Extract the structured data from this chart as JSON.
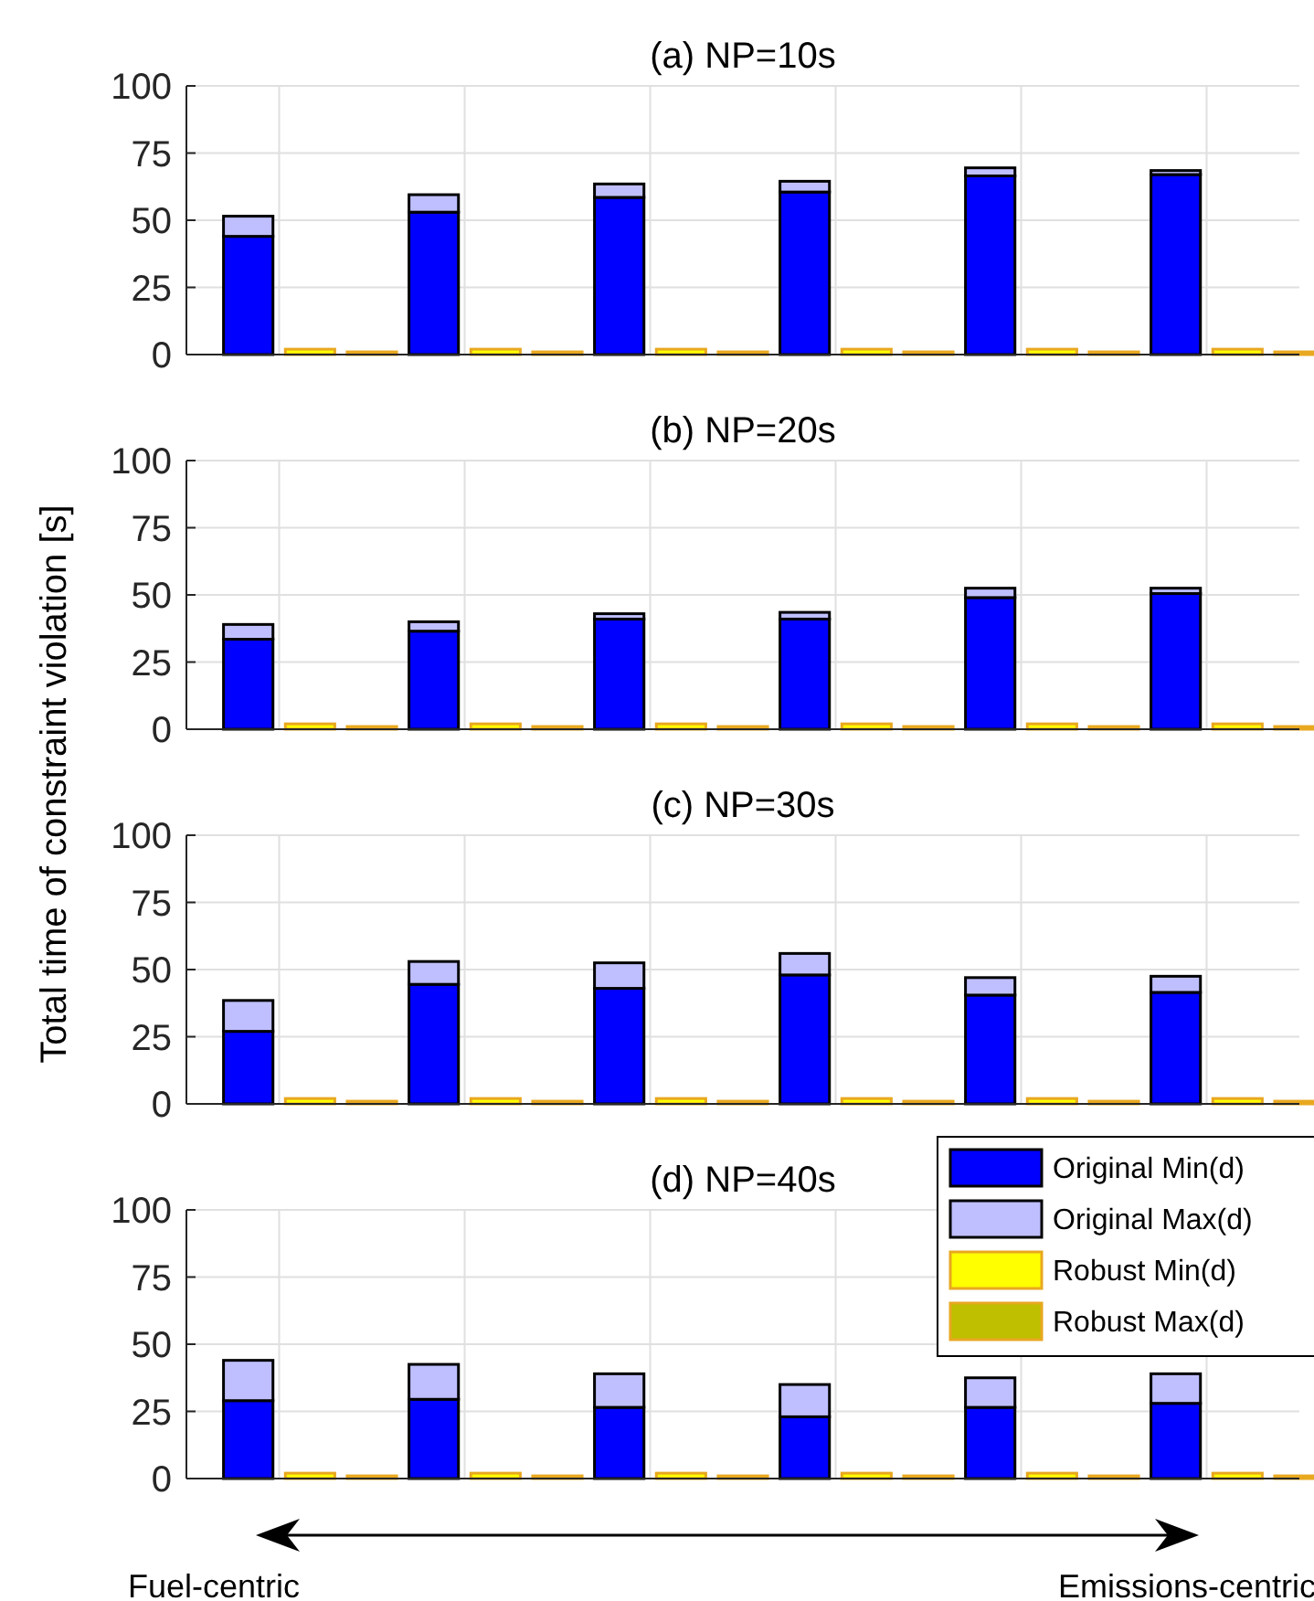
{
  "chart_data": [
    {
      "type": "bar",
      "title": "(a) NP=10s",
      "stacked": true,
      "categories": [
        null,
        null,
        null,
        null,
        null,
        null,
        null,
        null,
        null,
        null,
        null,
        null,
        null,
        null,
        null,
        null,
        null,
        null
      ],
      "ylim": [
        0,
        100
      ],
      "yticks": [
        0,
        25,
        50,
        75,
        100
      ],
      "grid": true,
      "tick_labels": "y",
      "series": [
        {
          "color": "#0000ff",
          "values": [
            44,
            null,
            null,
            53,
            null,
            null,
            58.5,
            null,
            null,
            60.5,
            null,
            null,
            66.5,
            null,
            null,
            67,
            null,
            null
          ]
        },
        {
          "color": "#bfbfff",
          "values": [
            7.5,
            null,
            null,
            6.5,
            null,
            null,
            5,
            null,
            null,
            4,
            null,
            null,
            3,
            null,
            null,
            1.5,
            null,
            null
          ]
        },
        {
          "color": "#ffff00",
          "values": [
            null,
            2,
            1,
            null,
            2,
            1,
            null,
            2,
            1,
            null,
            2,
            1,
            null,
            2,
            1,
            null,
            2,
            1
          ]
        },
        {
          "color": "#bfbf00",
          "values": [
            null,
            0,
            0,
            null,
            0,
            0,
            null,
            0,
            0,
            null,
            0,
            0,
            null,
            0,
            0,
            null,
            0,
            0
          ]
        }
      ]
    },
    {
      "type": "bar",
      "title": "(b) NP=20s",
      "stacked": true,
      "categories": [
        null,
        null,
        null,
        null,
        null,
        null,
        null,
        null,
        null,
        null,
        null,
        null,
        null,
        null,
        null,
        null,
        null,
        null
      ],
      "ylim": [
        0,
        100
      ],
      "yticks": [
        0,
        25,
        50,
        75,
        100
      ],
      "grid": true,
      "tick_labels": "y",
      "series": [
        {
          "color": "#0000ff",
          "values": [
            33.5,
            null,
            null,
            36.5,
            null,
            null,
            41,
            null,
            null,
            41,
            null,
            null,
            49,
            null,
            null,
            50.5,
            null,
            null
          ]
        },
        {
          "color": "#bfbfff",
          "values": [
            5.5,
            null,
            null,
            3.5,
            null,
            null,
            2,
            null,
            null,
            2.5,
            null,
            null,
            3.5,
            null,
            null,
            2,
            null,
            null
          ]
        },
        {
          "color": "#ffff00",
          "values": [
            null,
            2,
            1,
            null,
            2,
            1,
            null,
            2,
            1,
            null,
            2,
            1,
            null,
            2,
            1,
            null,
            2,
            1
          ]
        },
        {
          "color": "#bfbf00",
          "values": [
            null,
            0,
            0,
            null,
            0,
            0,
            null,
            0,
            0,
            null,
            0,
            0,
            null,
            0,
            0,
            null,
            0,
            0
          ]
        }
      ]
    },
    {
      "type": "bar",
      "title": "(c) NP=30s",
      "ylabel": "Total time of constraint violation [s]",
      "stacked": true,
      "categories": [
        null,
        null,
        null,
        null,
        null,
        null,
        null,
        null,
        null,
        null,
        null,
        null,
        null,
        null,
        null,
        null,
        null,
        null
      ],
      "ylim": [
        0,
        100
      ],
      "yticks": [
        0,
        25,
        50,
        75,
        100
      ],
      "grid": true,
      "tick_labels": "y",
      "series": [
        {
          "color": "#0000ff",
          "values": [
            27,
            null,
            null,
            44.5,
            null,
            null,
            43,
            null,
            null,
            48,
            null,
            null,
            40.5,
            null,
            null,
            41.5,
            null,
            null
          ]
        },
        {
          "color": "#bfbfff",
          "values": [
            11.5,
            null,
            null,
            8.5,
            null,
            null,
            9.5,
            null,
            null,
            8,
            null,
            null,
            6.5,
            null,
            null,
            6,
            null,
            null
          ]
        },
        {
          "color": "#ffff00",
          "values": [
            null,
            2,
            1,
            null,
            2,
            1,
            null,
            2,
            1,
            null,
            2,
            1,
            null,
            2,
            1,
            null,
            2,
            1
          ]
        },
        {
          "color": "#bfbf00",
          "values": [
            null,
            0,
            0,
            null,
            0,
            0,
            null,
            0,
            0,
            null,
            0,
            0,
            null,
            0,
            0,
            null,
            0,
            0
          ]
        }
      ]
    },
    {
      "type": "bar",
      "title": "(d) NP=40s",
      "stacked": true,
      "legend": "top right",
      "annotations": [
        "Fuel-centric",
        "Emissions-centric"
      ],
      "categories": [
        null,
        null,
        null,
        null,
        null,
        null,
        null,
        null,
        null,
        null,
        null,
        null,
        null,
        null,
        null,
        null,
        null,
        null
      ],
      "ylim": [
        0,
        100
      ],
      "yticks": [
        0,
        25,
        50,
        75,
        100
      ],
      "grid": true,
      "tick_labels": "y",
      "series": [
        {
          "name": "Original Min(d)",
          "color": "#0000ff",
          "values": [
            29,
            null,
            null,
            29.5,
            null,
            null,
            26.5,
            null,
            null,
            23,
            null,
            null,
            26.5,
            null,
            null,
            28,
            null,
            null
          ]
        },
        {
          "name": "Original Max(d)",
          "color": "#bfbfff",
          "values": [
            15,
            null,
            null,
            13,
            null,
            null,
            12.5,
            null,
            null,
            12,
            null,
            null,
            11,
            null,
            null,
            11,
            null,
            null
          ]
        },
        {
          "name": "Robust Min(d)",
          "color": "#ffff00",
          "values": [
            null,
            2,
            1,
            null,
            2,
            1,
            null,
            2,
            1,
            null,
            2,
            1,
            null,
            2,
            1,
            null,
            2,
            1
          ]
        },
        {
          "name": "Robust Max(d)",
          "color": "#bfbf00",
          "values": [
            null,
            0,
            0,
            null,
            0,
            0,
            null,
            0,
            0,
            null,
            0,
            0,
            null,
            0,
            0,
            null,
            0,
            0
          ]
        }
      ]
    }
  ]
}
